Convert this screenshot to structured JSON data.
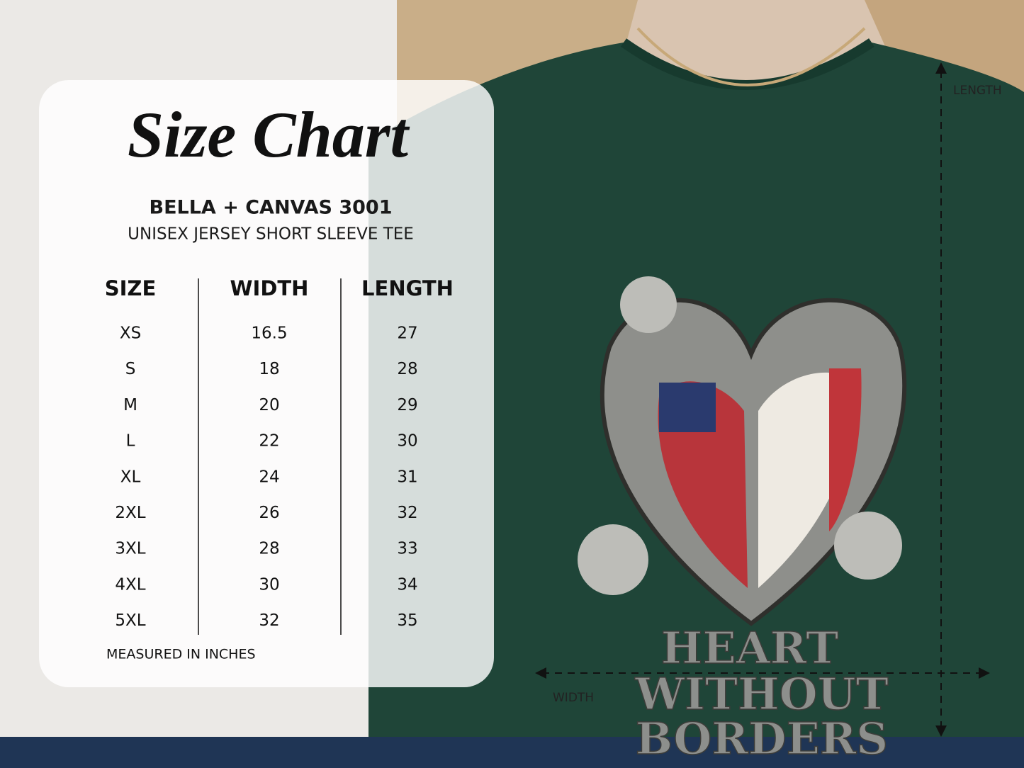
{
  "header": {
    "title": "Size Chart",
    "brand": "BELLA + CANVAS 3001",
    "subtitle": "UNISEX JERSEY SHORT SLEEVE TEE"
  },
  "table": {
    "columns": [
      "SIZE",
      "WIDTH",
      "LENGTH"
    ],
    "rows": [
      [
        "XS",
        16.5,
        27
      ],
      [
        "S",
        18,
        28
      ],
      [
        "M",
        20,
        29
      ],
      [
        "L",
        22,
        30
      ],
      [
        "XL",
        24,
        31
      ],
      [
        "2XL",
        26,
        32
      ],
      [
        "3XL",
        28,
        33
      ],
      [
        "4XL",
        30,
        34
      ],
      [
        "5XL",
        32,
        35
      ]
    ]
  },
  "note": "MEASURED IN INCHES",
  "dimensions": {
    "length": "LENGTH",
    "width": "WIDTH"
  },
  "shirt_print": [
    "HEART",
    "WITHOUT",
    "BORDERS"
  ]
}
